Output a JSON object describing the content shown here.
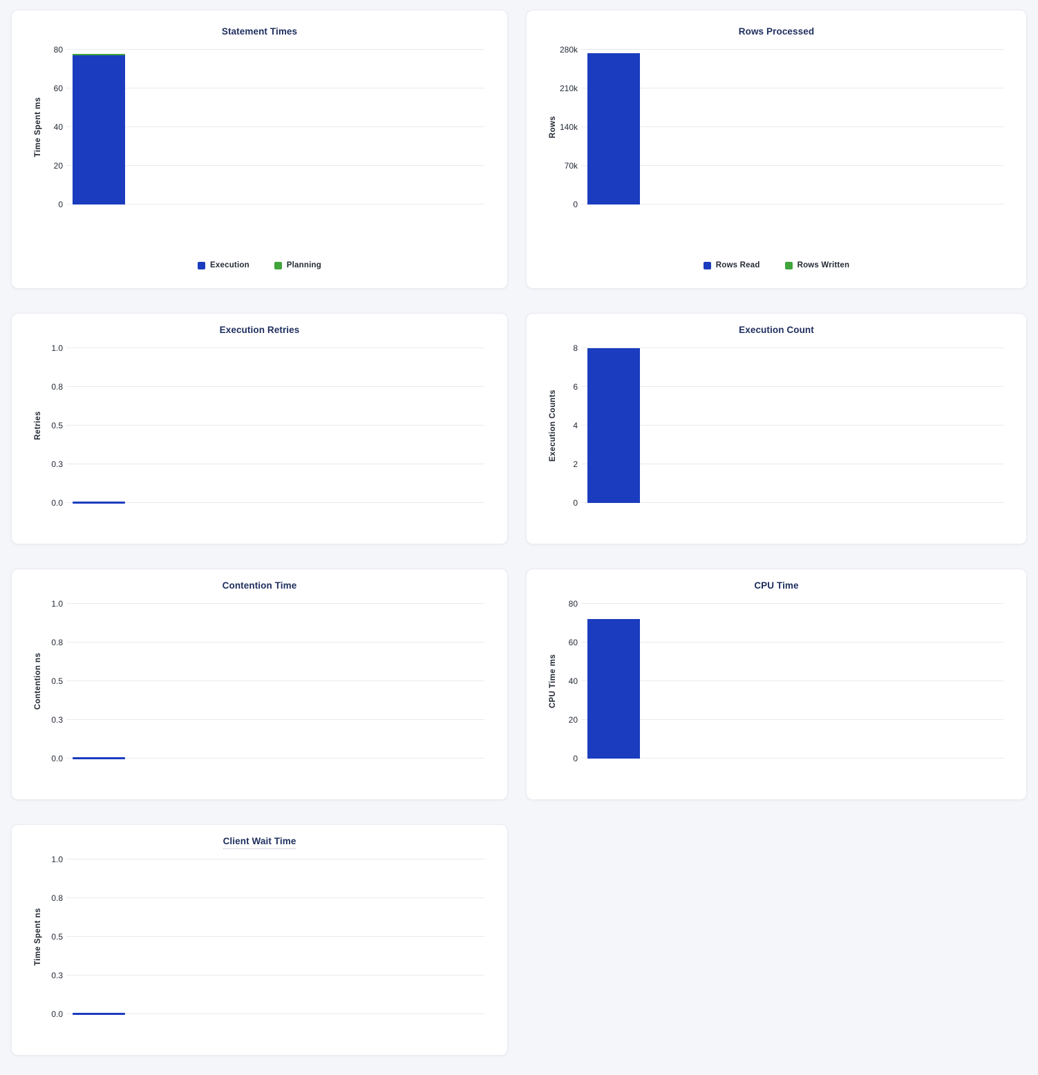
{
  "page": {
    "background": "#f4f6fa",
    "card_background": "#ffffff"
  },
  "colors": {
    "bar_blue": "#1b3cbe",
    "bar_green": "#41a53c",
    "title_navy": "#1d2d5e",
    "tick_text": "#242a35",
    "gridline": "#e9eaec"
  },
  "chart_data": [
    {
      "type": "bar",
      "title": "Statement Times",
      "ylabel": "Time Spent ms",
      "ylim": [
        0,
        80
      ],
      "ymax": 80,
      "tick_labels": [
        "0",
        "20",
        "40",
        "60",
        "80"
      ],
      "grid": true,
      "stacked": true,
      "series": [
        {
          "name": "Execution",
          "color": "#1b3cbe",
          "value": 77
        },
        {
          "name": "Planning",
          "color": "#41a53c",
          "value": 1
        }
      ],
      "legend": [
        {
          "label": "Execution",
          "color": "#1b3cbe"
        },
        {
          "label": "Planning",
          "color": "#41a53c"
        }
      ],
      "legend_position": "bottom-center"
    },
    {
      "type": "bar",
      "title": "Rows Processed",
      "ylabel": "Rows",
      "ylim": [
        0,
        280000
      ],
      "ymax": 280000,
      "tick_labels": [
        "0",
        "70k",
        "140k",
        "210k",
        "280k"
      ],
      "grid": true,
      "stacked": true,
      "series": [
        {
          "name": "Rows Read",
          "color": "#1b3cbe",
          "value": 274000
        },
        {
          "name": "Rows Written",
          "color": "#41a53c",
          "value": 0
        }
      ],
      "legend": [
        {
          "label": "Rows Read",
          "color": "#1b3cbe"
        },
        {
          "label": "Rows Written",
          "color": "#41a53c"
        }
      ],
      "legend_position": "bottom-center"
    },
    {
      "type": "bar",
      "title": "Execution Retries",
      "ylabel": "Retries",
      "ylim": [
        0,
        1
      ],
      "ymax": 1,
      "tick_labels": [
        "0.0",
        "0.3",
        "0.5",
        "0.8",
        "1.0"
      ],
      "grid": true,
      "series": [
        {
          "color": "#1b3cbe",
          "value": 0
        }
      ]
    },
    {
      "type": "bar",
      "title": "Execution Count",
      "ylabel": "Execution Counts",
      "ylim": [
        0,
        8
      ],
      "ymax": 8,
      "tick_labels": [
        "0",
        "2",
        "4",
        "6",
        "8"
      ],
      "grid": true,
      "series": [
        {
          "color": "#1b3cbe",
          "value": 8
        }
      ]
    },
    {
      "type": "bar",
      "title": "Contention Time",
      "ylabel": "Contention ns",
      "ylim": [
        0,
        1
      ],
      "ymax": 1,
      "tick_labels": [
        "0.0",
        "0.3",
        "0.5",
        "0.8",
        "1.0"
      ],
      "grid": true,
      "series": [
        {
          "color": "#1b3cbe",
          "value": 0
        }
      ]
    },
    {
      "type": "bar",
      "title": "CPU Time",
      "ylabel": "CPU Time ms",
      "ylim": [
        0,
        80
      ],
      "ymax": 80,
      "tick_labels": [
        "0",
        "20",
        "40",
        "60",
        "80"
      ],
      "grid": true,
      "series": [
        {
          "color": "#1b3cbe",
          "value": 72
        }
      ]
    },
    {
      "type": "bar",
      "title": "Client Wait Time",
      "ylabel": "Time Spent ns",
      "ylim": [
        0,
        1
      ],
      "ymax": 1,
      "tick_labels": [
        "0.0",
        "0.3",
        "0.5",
        "0.8",
        "1.0"
      ],
      "grid": true,
      "title_has_tooltip": true,
      "series": [
        {
          "color": "#1b3cbe",
          "value": 0
        }
      ]
    }
  ]
}
